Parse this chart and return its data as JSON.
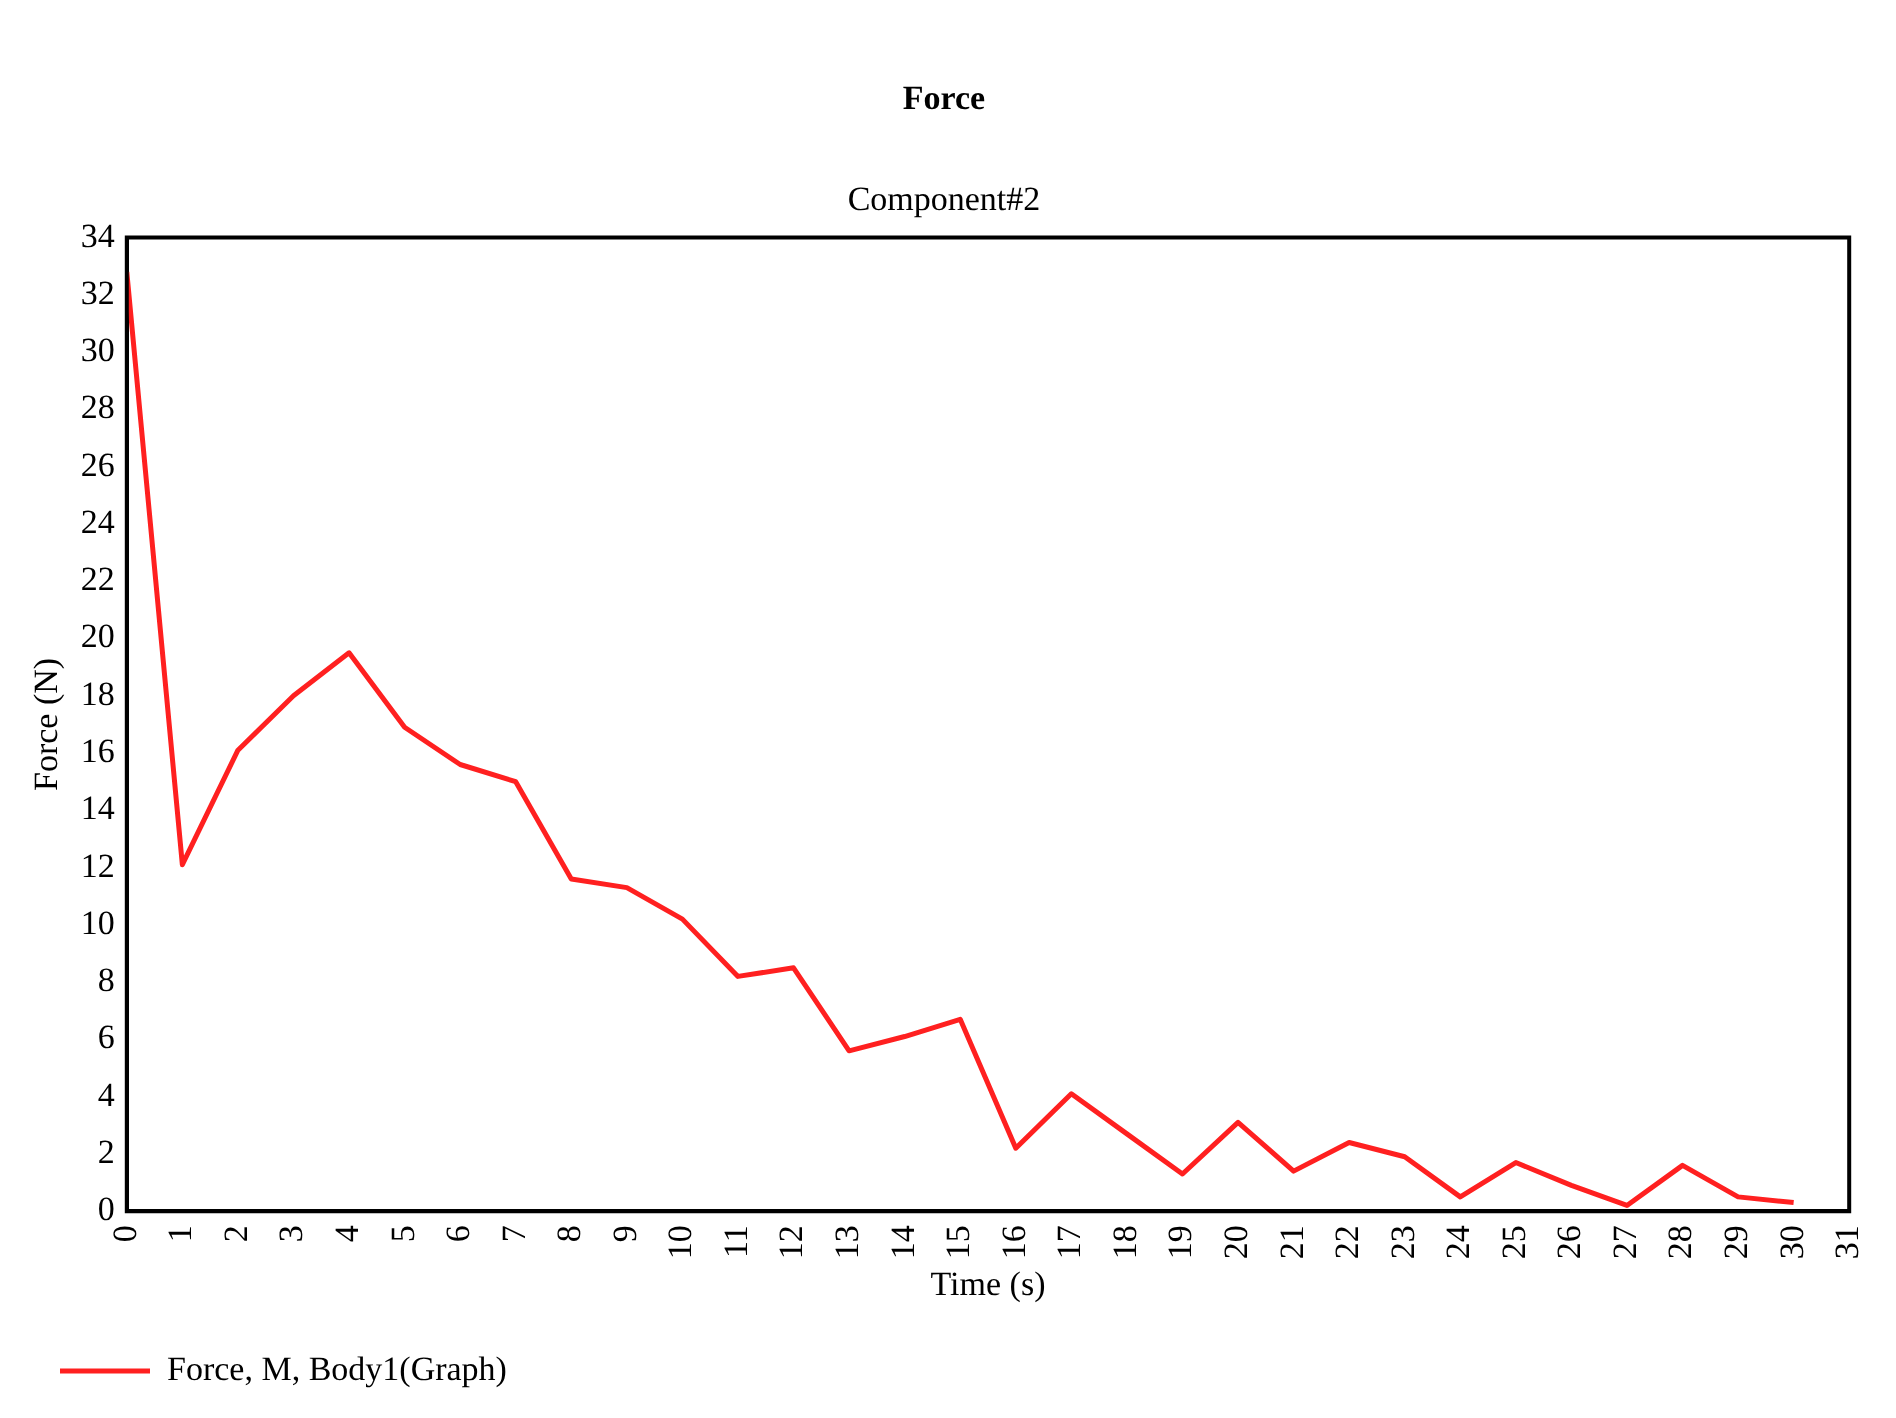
{
  "chart_data": {
    "type": "line",
    "title": "Force",
    "subtitle": "Component#2",
    "xlabel": "Time (s)",
    "ylabel": "Force (N)",
    "x": [
      0,
      1,
      2,
      3,
      4,
      5,
      6,
      7,
      8,
      9,
      10,
      11,
      12,
      13,
      14,
      15,
      16,
      17,
      18,
      19,
      20,
      21,
      22,
      23,
      24,
      25,
      26,
      27,
      28,
      29,
      30
    ],
    "series": [
      {
        "name": "Force, M, Body1(Graph)",
        "color": "#ff2020",
        "values": [
          32.8,
          12.1,
          16.1,
          18.0,
          19.5,
          16.9,
          15.6,
          15.0,
          11.6,
          11.3,
          10.2,
          8.2,
          8.5,
          5.6,
          6.1,
          6.7,
          2.2,
          4.1,
          2.7,
          1.3,
          3.1,
          1.4,
          2.4,
          1.9,
          0.5,
          1.7,
          0.9,
          0.2,
          1.6,
          0.5,
          0.3
        ]
      }
    ],
    "xlim": [
      0,
      31
    ],
    "xticks": [
      0,
      1,
      2,
      3,
      4,
      5,
      6,
      7,
      8,
      9,
      10,
      11,
      12,
      13,
      14,
      15,
      16,
      17,
      18,
      19,
      20,
      21,
      22,
      23,
      24,
      25,
      26,
      27,
      28,
      29,
      30,
      31
    ],
    "ylim": [
      0,
      34
    ],
    "yticks": [
      0,
      2,
      4,
      6,
      8,
      10,
      12,
      14,
      16,
      18,
      20,
      22,
      24,
      26,
      28,
      30,
      32,
      34
    ],
    "legend": "bottom left",
    "marker": "none",
    "line_style": "solid"
  }
}
